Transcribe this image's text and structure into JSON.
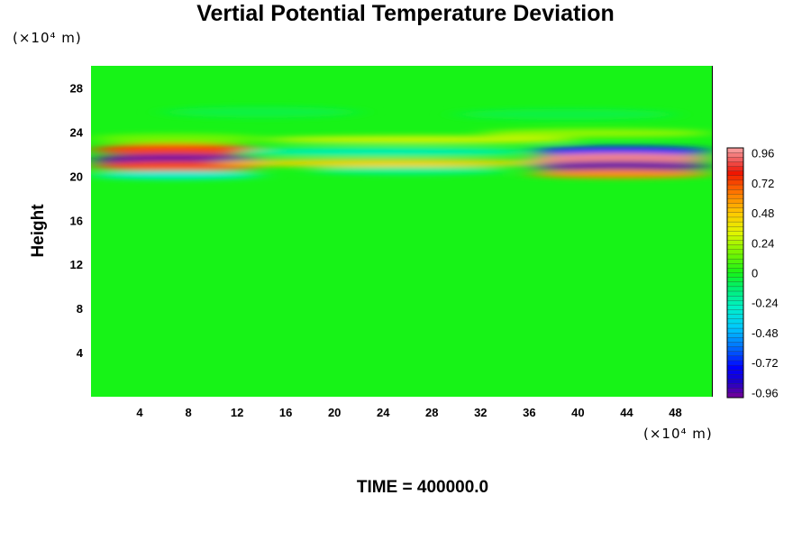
{
  "chart_data": {
    "type": "heatmap",
    "title": "Vertial Potential Temperature Deviation",
    "ylabel": "Height",
    "xlabel": "",
    "x_unit": "(×10⁴ m)",
    "y_unit": "(×10⁴ m)",
    "xlim": [
      0,
      51
    ],
    "ylim": [
      0,
      30
    ],
    "x_ticks": [
      "4",
      "8",
      "12",
      "16",
      "20",
      "24",
      "28",
      "32",
      "36",
      "40",
      "44",
      "48"
    ],
    "y_ticks": [
      "4",
      "8",
      "12",
      "16",
      "20",
      "24",
      "28"
    ],
    "x_tick_values": [
      4,
      8,
      12,
      16,
      20,
      24,
      28,
      32,
      36,
      40,
      44,
      48
    ],
    "y_tick_values": [
      4,
      8,
      12,
      16,
      20,
      24,
      28
    ],
    "colorbar": {
      "min": -1.0,
      "max": 1.0,
      "labels": [
        "0.96",
        "0.72",
        "0.48",
        "0.24",
        "0",
        "-0.24",
        "-0.48",
        "-0.72",
        "-0.96"
      ],
      "label_values": [
        0.96,
        0.72,
        0.48,
        0.24,
        0,
        -0.24,
        -0.48,
        -0.72,
        -0.96
      ],
      "colormap": "rainbow"
    },
    "background_value": 0.0,
    "features": [
      {
        "x_range": [
          0,
          14
        ],
        "y_center": 21.5,
        "peak": -0.96
      },
      {
        "x_range": [
          0,
          14
        ],
        "y_center": 22.4,
        "peak": 0.72
      },
      {
        "x_range": [
          0,
          14
        ],
        "y_center": 20.9,
        "peak": 0.72
      },
      {
        "x_range": [
          36,
          51
        ],
        "y_center": 21.6,
        "peak": 0.96
      },
      {
        "x_range": [
          36,
          51
        ],
        "y_center": 20.9,
        "peak": -0.96
      },
      {
        "x_range": [
          36,
          51
        ],
        "y_center": 22.3,
        "peak": -0.72
      }
    ]
  },
  "footer": {
    "time_label": "TIME = 400000.0"
  }
}
